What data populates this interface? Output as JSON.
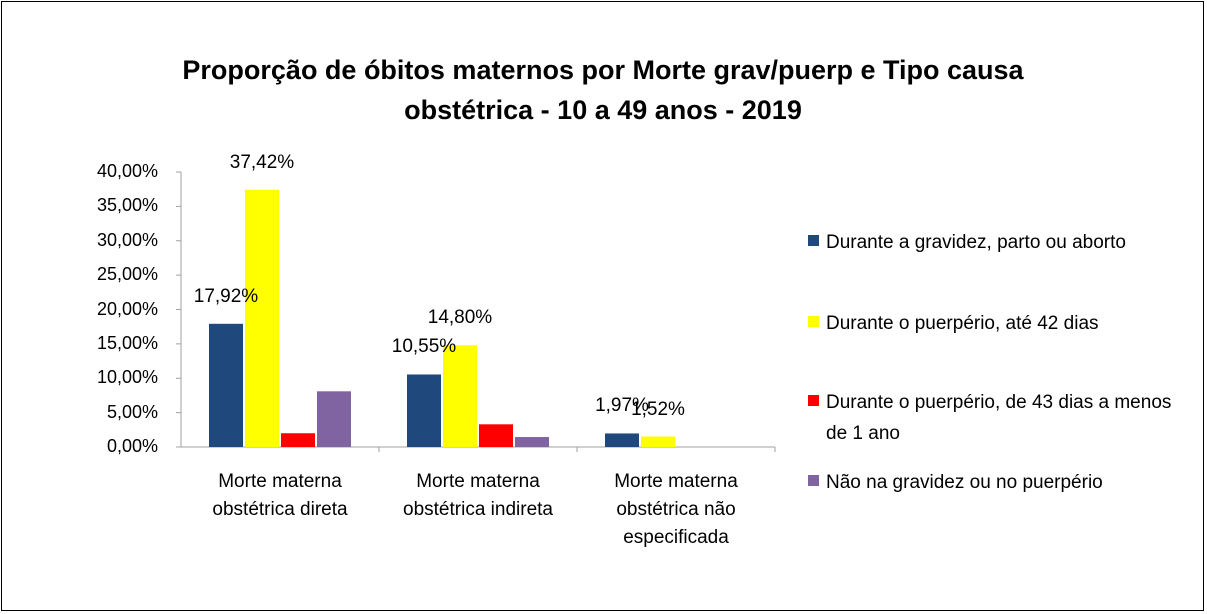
{
  "chart_data": {
    "type": "bar",
    "title": "Proporção de óbitos maternos por Morte grav/puerp e Tipo causa obstétrica - 10 a 49 anos - 2019",
    "categories": [
      "Morte materna obstétrica direta",
      "Morte materna obstétrica indireta",
      "Morte materna obstétrica não especificada"
    ],
    "series": [
      {
        "name": "Durante a gravidez, parto ou aborto",
        "color": "#1f497d",
        "values": [
          17.92,
          10.55,
          1.97
        ],
        "value_labels": [
          "17,92%",
          "10,55%",
          "1,97%"
        ]
      },
      {
        "name": "Durante o puerpério, até 42 dias",
        "color": "#ffff00",
        "values": [
          37.42,
          14.8,
          1.52
        ],
        "value_labels": [
          "37,42%",
          "14,80%",
          "1,52%"
        ]
      },
      {
        "name": "Durante o puerpério, de 43 dias a menos de 1 ano",
        "color": "#ff0000",
        "values": [
          2.0,
          3.3,
          0
        ]
      },
      {
        "name": "Não na gravidez ou no puerpério",
        "color": "#8064a2",
        "values": [
          8.1,
          1.45,
          0
        ]
      }
    ],
    "ylim": [
      0,
      40
    ],
    "yticks": [
      {
        "value": 0,
        "label": "0,00%"
      },
      {
        "value": 5,
        "label": "5,00%"
      },
      {
        "value": 10,
        "label": "10,00%"
      },
      {
        "value": 15,
        "label": "15,00%"
      },
      {
        "value": 20,
        "label": "20,00%"
      },
      {
        "value": 25,
        "label": "25,00%"
      },
      {
        "value": 30,
        "label": "30,00%"
      },
      {
        "value": 35,
        "label": "35,00%"
      },
      {
        "value": 40,
        "label": "40,00%"
      }
    ],
    "legend": "right"
  }
}
